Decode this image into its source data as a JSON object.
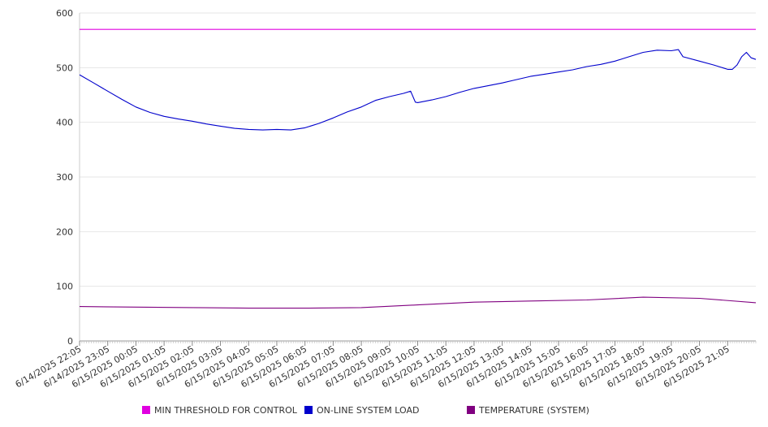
{
  "chart_data": {
    "type": "line",
    "title": "",
    "xlabel": "",
    "ylabel": "",
    "ylim": [
      0,
      600
    ],
    "y_ticks": [
      0,
      100,
      200,
      300,
      400,
      500,
      600
    ],
    "grid": "horizontal",
    "legend_position": "bottom",
    "x_tick_labels": [
      "6/14/2025 22:05",
      "6/14/2025 23:05",
      "6/15/2025 00:05",
      "6/15/2025 01:05",
      "6/15/2025 02:05",
      "6/15/2025 03:05",
      "6/15/2025 04:05",
      "6/15/2025 05:05",
      "6/15/2025 06:05",
      "6/15/2025 07:05",
      "6/15/2025 08:05",
      "6/15/2025 09:05",
      "6/15/2025 10:05",
      "6/15/2025 11:05",
      "6/15/2025 12:05",
      "6/15/2025 13:05",
      "6/15/2025 14:05",
      "6/15/2025 15:05",
      "6/15/2025 16:05",
      "6/15/2025 17:05",
      "6/15/2025 18:05",
      "6/15/2025 19:05",
      "6/15/2025 20:05",
      "6/15/2025 21:05"
    ],
    "x_start": "6/14/2025 22:05",
    "x_end": "6/15/2025 22:05",
    "series": [
      {
        "name": "MIN THRESHOLD FOR CONTROL",
        "color": "#e000e0",
        "x": [
          "6/14/2025 22:05",
          "6/15/2025 22:05"
        ],
        "values": [
          570,
          570
        ]
      },
      {
        "name": "ON-LINE SYSTEM LOAD",
        "color": "#0000cc",
        "x": [
          "6/14/2025 22:05",
          "6/14/2025 22:35",
          "6/14/2025 23:05",
          "6/14/2025 23:35",
          "6/15/2025 00:05",
          "6/15/2025 00:35",
          "6/15/2025 01:05",
          "6/15/2025 01:35",
          "6/15/2025 02:05",
          "6/15/2025 02:35",
          "6/15/2025 03:05",
          "6/15/2025 03:35",
          "6/15/2025 04:05",
          "6/15/2025 04:35",
          "6/15/2025 05:05",
          "6/15/2025 05:35",
          "6/15/2025 06:05",
          "6/15/2025 06:35",
          "6/15/2025 07:05",
          "6/15/2025 07:35",
          "6/15/2025 08:05",
          "6/15/2025 08:35",
          "6/15/2025 09:05",
          "6/15/2025 09:35",
          "6/15/2025 09:50",
          "6/15/2025 10:00",
          "6/15/2025 10:05",
          "6/15/2025 10:35",
          "6/15/2025 11:05",
          "6/15/2025 11:35",
          "6/15/2025 12:05",
          "6/15/2025 12:35",
          "6/15/2025 13:05",
          "6/15/2025 13:35",
          "6/15/2025 14:05",
          "6/15/2025 14:35",
          "6/15/2025 15:05",
          "6/15/2025 15:35",
          "6/15/2025 16:05",
          "6/15/2025 16:35",
          "6/15/2025 17:05",
          "6/15/2025 17:35",
          "6/15/2025 18:05",
          "6/15/2025 18:35",
          "6/15/2025 19:05",
          "6/15/2025 19:20",
          "6/15/2025 19:30",
          "6/15/2025 20:05",
          "6/15/2025 20:35",
          "6/15/2025 21:05",
          "6/15/2025 21:15",
          "6/15/2025 21:25",
          "6/15/2025 21:35",
          "6/15/2025 21:45",
          "6/15/2025 21:55",
          "6/15/2025 22:05"
        ],
        "values": [
          487,
          472,
          457,
          442,
          428,
          418,
          411,
          406,
          402,
          397,
          393,
          389,
          387,
          386,
          387,
          386,
          390,
          398,
          408,
          419,
          428,
          440,
          447,
          453,
          457,
          437,
          436,
          441,
          447,
          455,
          462,
          467,
          472,
          478,
          484,
          488,
          492,
          496,
          502,
          506,
          512,
          520,
          528,
          532,
          531,
          533,
          520,
          512,
          505,
          497,
          497,
          505,
          520,
          528,
          518,
          515
        ]
      },
      {
        "name": "TEMPERATURE (SYSTEM)",
        "color": "#800080",
        "x": [
          "6/14/2025 22:05",
          "6/15/2025 00:05",
          "6/15/2025 02:05",
          "6/15/2025 04:05",
          "6/15/2025 06:05",
          "6/15/2025 08:05",
          "6/15/2025 10:05",
          "6/15/2025 12:05",
          "6/15/2025 14:05",
          "6/15/2025 16:05",
          "6/15/2025 18:05",
          "6/15/2025 20:05",
          "6/15/2025 22:05"
        ],
        "values": [
          63,
          62,
          61,
          60,
          60,
          61,
          66,
          71,
          73,
          75,
          80,
          78,
          70
        ]
      }
    ]
  }
}
